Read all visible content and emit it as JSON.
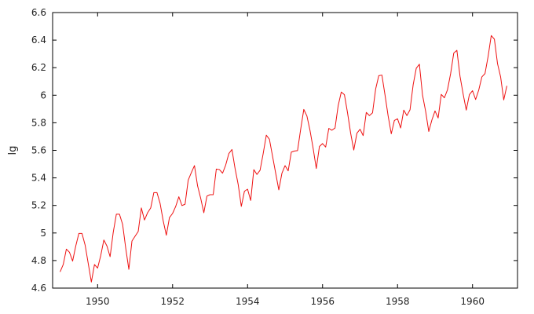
{
  "chart_data": {
    "type": "line",
    "title": "",
    "xlabel": "",
    "ylabel": "lg",
    "xlim": [
      1948.8,
      1961.2
    ],
    "ylim": [
      4.6,
      6.6
    ],
    "grid": false,
    "x_ticks": [
      1950,
      1952,
      1954,
      1956,
      1958,
      1960
    ],
    "y_ticks": [
      4.6,
      4.8,
      5.0,
      5.2,
      5.4,
      5.6,
      5.8,
      6.0,
      6.2,
      6.4,
      6.6
    ],
    "x_tick_labels": [
      "1950",
      "1952",
      "1954",
      "1956",
      "1958",
      "1960"
    ],
    "y_tick_labels": [
      "4.6",
      "4.8",
      "5",
      "5.2",
      "5.4",
      "5.6",
      "5.8",
      "6",
      "6.2",
      "6.4",
      "6.6"
    ],
    "colors": {
      "series": "#ee1111",
      "axis": "#000000"
    },
    "series": [
      {
        "x_start": 1949.0,
        "x_step": 0.08333,
        "values": [
          4.718,
          4.771,
          4.883,
          4.86,
          4.796,
          4.905,
          4.997,
          4.997,
          4.913,
          4.779,
          4.644,
          4.771,
          4.745,
          4.836,
          4.949,
          4.905,
          4.828,
          5.004,
          5.136,
          5.136,
          5.063,
          4.89,
          4.736,
          4.942,
          4.977,
          5.011,
          5.182,
          5.094,
          5.147,
          5.182,
          5.293,
          5.293,
          5.215,
          5.088,
          4.984,
          5.112,
          5.142,
          5.193,
          5.263,
          5.199,
          5.209,
          5.384,
          5.438,
          5.489,
          5.342,
          5.252,
          5.147,
          5.268,
          5.278,
          5.278,
          5.464,
          5.46,
          5.434,
          5.493,
          5.576,
          5.606,
          5.468,
          5.352,
          5.193,
          5.303,
          5.318,
          5.236,
          5.46,
          5.425,
          5.455,
          5.576,
          5.71,
          5.68,
          5.557,
          5.434,
          5.313,
          5.434,
          5.489,
          5.451,
          5.587,
          5.595,
          5.598,
          5.753,
          5.897,
          5.849,
          5.743,
          5.613,
          5.468,
          5.628,
          5.649,
          5.624,
          5.759,
          5.746,
          5.762,
          5.924,
          6.023,
          6.004,
          5.872,
          5.724,
          5.602,
          5.724,
          5.753,
          5.707,
          5.875,
          5.852,
          5.872,
          6.045,
          6.142,
          6.146,
          6.001,
          5.849,
          5.72,
          5.817,
          5.829,
          5.762,
          5.892,
          5.852,
          5.894,
          6.075,
          6.196,
          6.225,
          6.001,
          5.883,
          5.737,
          5.82,
          5.886,
          5.835,
          6.006,
          5.981,
          6.04,
          6.157,
          6.306,
          6.326,
          6.138,
          6.009,
          5.892,
          6.004,
          6.033,
          5.969,
          6.038,
          6.133,
          6.157,
          6.282,
          6.433,
          6.407,
          6.23,
          6.133,
          5.966,
          6.068
        ]
      }
    ]
  }
}
